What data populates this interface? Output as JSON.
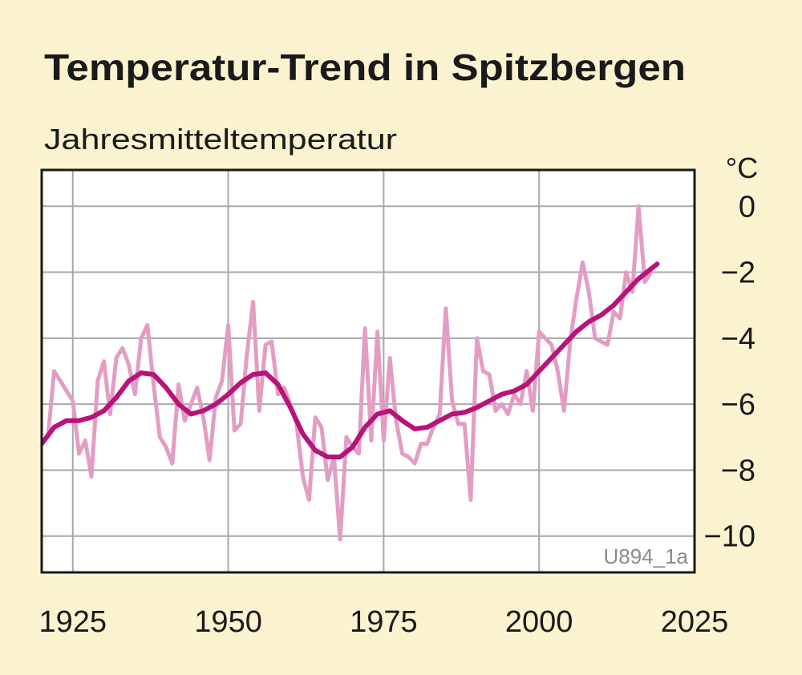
{
  "chart_data": {
    "type": "line",
    "title": "Temperatur-Trend in Spitzbergen",
    "subtitle": "Jahresmitteltemperatur",
    "y_unit": "°C",
    "annotation": "U894_1a",
    "background": "#fbf3cf",
    "plot_background": "#ffffff",
    "grid": true,
    "xlim": [
      1920,
      2025
    ],
    "xticks": [
      1925,
      1950,
      1975,
      2000,
      2025
    ],
    "ylim": [
      -11.1,
      1.1
    ],
    "yticks": [
      0,
      {
        "value": -2,
        "label": "−2"
      },
      {
        "value": -4,
        "label": "−4"
      },
      {
        "value": -6,
        "label": "−6"
      },
      {
        "value": -8,
        "label": "−8"
      },
      {
        "value": -10,
        "label": "−10"
      }
    ],
    "series": [
      {
        "color": "#e39dc4",
        "width": 5,
        "x": [
          1921,
          1922,
          1923,
          1924,
          1925,
          1926,
          1927,
          1928,
          1929,
          1930,
          1931,
          1932,
          1933,
          1934,
          1935,
          1936,
          1937,
          1938,
          1939,
          1940,
          1941,
          1942,
          1943,
          1944,
          1945,
          1946,
          1947,
          1948,
          1949,
          1950,
          1951,
          1952,
          1953,
          1954,
          1955,
          1956,
          1957,
          1958,
          1959,
          1960,
          1961,
          1962,
          1963,
          1964,
          1965,
          1966,
          1967,
          1968,
          1969,
          1970,
          1971,
          1972,
          1973,
          1974,
          1975,
          1976,
          1977,
          1978,
          1979,
          1980,
          1981,
          1982,
          1983,
          1984,
          1985,
          1986,
          1987,
          1988,
          1989,
          1990,
          1991,
          1992,
          1993,
          1994,
          1995,
          1996,
          1997,
          1998,
          1999,
          2000,
          2001,
          2002,
          2003,
          2004,
          2005,
          2006,
          2007,
          2008,
          2009,
          2010,
          2011,
          2012,
          2013,
          2014,
          2015,
          2016,
          2017,
          2018
        ],
        "values": [
          -7.0,
          -5.0,
          -5.3,
          -5.6,
          -5.9,
          -7.5,
          -7.1,
          -8.2,
          -5.3,
          -4.7,
          -6.3,
          -4.6,
          -4.3,
          -4.8,
          -5.7,
          -4.0,
          -3.6,
          -5.4,
          -7.0,
          -7.3,
          -7.8,
          -5.4,
          -6.5,
          -6.0,
          -5.5,
          -6.4,
          -7.7,
          -5.8,
          -5.3,
          -3.6,
          -6.8,
          -6.6,
          -4.5,
          -2.9,
          -6.2,
          -4.2,
          -4.1,
          -5.7,
          -5.5,
          -6.0,
          -6.6,
          -8.2,
          -8.9,
          -6.4,
          -6.7,
          -8.3,
          -7.6,
          -10.1,
          -7.0,
          -7.3,
          -7.5,
          -3.7,
          -7.1,
          -3.8,
          -7.1,
          -4.6,
          -6.5,
          -7.5,
          -7.6,
          -7.8,
          -7.2,
          -7.2,
          -6.7,
          -6.3,
          -3.1,
          -5.9,
          -6.6,
          -6.6,
          -8.9,
          -4.0,
          -5.0,
          -5.1,
          -6.2,
          -6.0,
          -6.3,
          -5.7,
          -6.0,
          -5.0,
          -6.2,
          -3.8,
          -4.0,
          -4.2,
          -5.0,
          -6.2,
          -4.1,
          -2.8,
          -1.7,
          -2.6,
          -4.0,
          -4.1,
          -4.2,
          -3.2,
          -3.4,
          -2.0,
          -2.6,
          0.0,
          -2.3,
          -2.0
        ]
      },
      {
        "color": "#b8137a",
        "width": 6,
        "x": [
          1920,
          1922,
          1924,
          1926,
          1928,
          1930,
          1932,
          1934,
          1936,
          1938,
          1940,
          1942,
          1944,
          1946,
          1948,
          1950,
          1952,
          1954,
          1956,
          1958,
          1960,
          1962,
          1964,
          1966,
          1968,
          1970,
          1972,
          1974,
          1976,
          1978,
          1980,
          1982,
          1984,
          1986,
          1988,
          1990,
          1992,
          1994,
          1996,
          1998,
          2000,
          2002,
          2004,
          2006,
          2008,
          2010,
          2012,
          2014,
          2016,
          2018,
          2019
        ],
        "values": [
          -7.2,
          -6.7,
          -6.5,
          -6.5,
          -6.4,
          -6.2,
          -5.8,
          -5.3,
          -5.05,
          -5.1,
          -5.5,
          -6.0,
          -6.3,
          -6.2,
          -6.0,
          -5.7,
          -5.35,
          -5.1,
          -5.05,
          -5.4,
          -6.1,
          -6.9,
          -7.4,
          -7.6,
          -7.6,
          -7.3,
          -6.7,
          -6.3,
          -6.2,
          -6.5,
          -6.75,
          -6.7,
          -6.5,
          -6.3,
          -6.25,
          -6.1,
          -5.9,
          -5.7,
          -5.6,
          -5.4,
          -5.0,
          -4.6,
          -4.2,
          -3.8,
          -3.5,
          -3.3,
          -3.0,
          -2.6,
          -2.2,
          -1.9,
          -1.75
        ]
      }
    ]
  }
}
